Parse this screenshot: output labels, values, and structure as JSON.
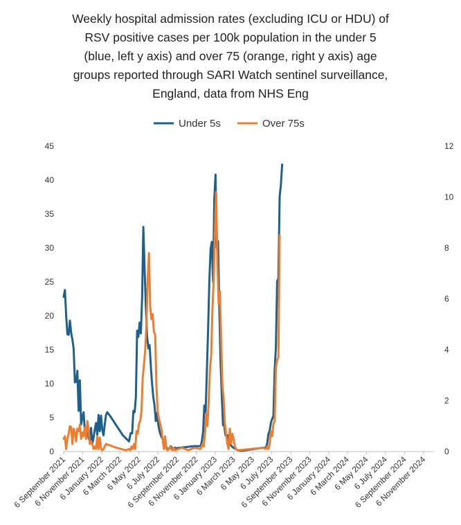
{
  "chart_data": {
    "type": "line",
    "title_lines": [
      "Weekly hospital admission rates (excluding ICU or HDU) of",
      "RSV positive cases per 100k population in the under 5",
      "(blue, left y axis) and over 75 (orange, right y axis) age",
      "groups reported through SARI Watch sentinel surveillance,",
      "England, data from NHS Eng"
    ],
    "legend_position": "top",
    "y_left": {
      "ylim": [
        0,
        45
      ],
      "ticks": [
        "0",
        "5",
        "10",
        "15",
        "20",
        "25",
        "30",
        "35",
        "40",
        "45"
      ]
    },
    "y_right": {
      "ylim": [
        0,
        12
      ],
      "ticks": [
        "0",
        "2",
        "4",
        "6",
        "8",
        "10",
        "12"
      ]
    },
    "x_range_days": [
      0,
      1190
    ],
    "x_ticks": [
      {
        "label": "6 September 2021",
        "day": 0
      },
      {
        "label": "6 November 2021",
        "day": 61
      },
      {
        "label": "6 January 2022",
        "day": 122
      },
      {
        "label": "6 March 2022",
        "day": 181
      },
      {
        "label": "6 May 2022",
        "day": 242
      },
      {
        "label": "6 July 2022",
        "day": 303
      },
      {
        "label": "6 September 2022",
        "day": 365
      },
      {
        "label": "6 November 2022",
        "day": 426
      },
      {
        "label": "6 January 2023",
        "day": 487
      },
      {
        "label": "6 March 2023",
        "day": 546
      },
      {
        "label": "6 May 2023",
        "day": 607
      },
      {
        "label": "6 July 2023",
        "day": 668
      },
      {
        "label": "6 September 2023",
        "day": 730
      },
      {
        "label": "6 November 2023",
        "day": 791
      },
      {
        "label": "6 January 2024",
        "day": 852
      },
      {
        "label": "6 March 2024",
        "day": 912
      },
      {
        "label": "6 May 2024",
        "day": 973
      },
      {
        "label": "6 July 2024",
        "day": 1034
      },
      {
        "label": "6 September 2024",
        "day": 1096
      },
      {
        "label": "6 November 2024",
        "day": 1157
      }
    ],
    "series": [
      {
        "name": "Under 5s",
        "color": "#1F5F8B",
        "axis": "left",
        "points": [
          [
            0,
            22.8
          ],
          [
            4,
            23.8
          ],
          [
            8,
            20
          ],
          [
            12,
            17.3
          ],
          [
            16,
            17.2
          ],
          [
            20,
            19.3
          ],
          [
            24,
            17.5
          ],
          [
            28,
            16.5
          ],
          [
            32,
            15.2
          ],
          [
            36,
            10.2
          ],
          [
            40,
            10.3
          ],
          [
            44,
            11.9
          ],
          [
            48,
            6
          ],
          [
            52,
            10.5
          ],
          [
            56,
            4
          ],
          [
            60,
            5
          ],
          [
            64,
            5.8
          ],
          [
            68,
            3
          ],
          [
            72,
            2.5
          ],
          [
            76,
            3.4
          ],
          [
            80,
            2
          ],
          [
            84,
            1.5
          ],
          [
            88,
            3.5
          ],
          [
            92,
            1.2
          ],
          [
            96,
            2
          ],
          [
            100,
            3.3
          ],
          [
            104,
            4.2
          ],
          [
            108,
            2.5
          ],
          [
            112,
            5.4
          ],
          [
            116,
            3
          ],
          [
            120,
            5.3
          ],
          [
            124,
            3.2
          ],
          [
            128,
            2.4
          ],
          [
            132,
            4
          ],
          [
            136,
            5.4
          ],
          [
            140,
            5.8
          ],
          [
            150,
            5.2
          ],
          [
            170,
            3.8
          ],
          [
            190,
            2.4
          ],
          [
            210,
            1.5
          ],
          [
            215,
            2.7
          ],
          [
            220,
            2.7
          ],
          [
            224,
            6
          ],
          [
            228,
            5.8
          ],
          [
            232,
            8
          ],
          [
            236,
            17.8
          ],
          [
            240,
            16.9
          ],
          [
            244,
            19
          ],
          [
            248,
            17.4
          ],
          [
            252,
            22.6
          ],
          [
            256,
            33.1
          ],
          [
            260,
            27
          ],
          [
            264,
            21.3
          ],
          [
            268,
            17
          ],
          [
            272,
            15.2
          ],
          [
            276,
            15.7
          ],
          [
            280,
            12.6
          ],
          [
            284,
            10
          ],
          [
            288,
            8
          ],
          [
            292,
            6.8
          ],
          [
            296,
            4.5
          ],
          [
            300,
            5.7
          ],
          [
            304,
            4
          ],
          [
            308,
            3
          ],
          [
            312,
            2.4
          ],
          [
            316,
            2
          ],
          [
            320,
            1.8
          ],
          [
            324,
            1.5
          ],
          [
            328,
            0.8
          ],
          [
            332,
            0.5
          ],
          [
            336,
            0.3
          ],
          [
            340,
            0.5
          ],
          [
            344,
            0.8
          ],
          [
            348,
            0.5
          ],
          [
            352,
            0.4
          ],
          [
            356,
            0.6
          ],
          [
            360,
            0.5
          ],
          [
            380,
            0.6
          ],
          [
            400,
            0.7
          ],
          [
            420,
            0.8
          ],
          [
            440,
            0.8
          ],
          [
            444,
            1.5
          ],
          [
            448,
            2.9
          ],
          [
            452,
            6.8
          ],
          [
            456,
            5.7
          ],
          [
            460,
            11.7
          ],
          [
            464,
            17.8
          ],
          [
            468,
            25
          ],
          [
            472,
            29.8
          ],
          [
            476,
            30.9
          ],
          [
            480,
            25
          ],
          [
            484,
            37.2
          ],
          [
            488,
            40.8
          ],
          [
            492,
            30
          ],
          [
            496,
            31
          ],
          [
            500,
            21.5
          ],
          [
            504,
            13.3
          ],
          [
            508,
            8.4
          ],
          [
            512,
            3.9
          ],
          [
            516,
            3.8
          ],
          [
            520,
            2.4
          ],
          [
            524,
            2.4
          ],
          [
            528,
            2.4
          ],
          [
            532,
            1.5
          ],
          [
            536,
            1
          ],
          [
            540,
            0.8
          ],
          [
            544,
            0.6
          ],
          [
            548,
            0.5
          ],
          [
            552,
            0.4
          ],
          [
            556,
            0.3
          ],
          [
            560,
            0.2
          ],
          [
            570,
            0.1
          ],
          [
            630,
            0.5
          ],
          [
            650,
            0.6
          ],
          [
            654,
            1.2
          ],
          [
            658,
            2.6
          ],
          [
            662,
            3.1
          ],
          [
            666,
            4.3
          ],
          [
            670,
            4.8
          ],
          [
            674,
            5.3
          ],
          [
            678,
            12
          ],
          [
            682,
            15.4
          ],
          [
            686,
            25.1
          ],
          [
            690,
            25.5
          ],
          [
            694,
            37.6
          ],
          [
            698,
            39.3
          ],
          [
            702,
            42.3
          ]
        ]
      },
      {
        "name": "Over 75s",
        "color": "#ED7D31",
        "axis": "right",
        "points": [
          [
            0,
            0.5
          ],
          [
            4,
            0.6
          ],
          [
            8,
            0.1
          ],
          [
            12,
            0.5
          ],
          [
            16,
            0.7
          ],
          [
            20,
            1
          ],
          [
            24,
            0.96
          ],
          [
            28,
            0.3
          ],
          [
            32,
            0.9
          ],
          [
            36,
            0.75
          ],
          [
            40,
            0.4
          ],
          [
            44,
            0.9
          ],
          [
            48,
            0.8
          ],
          [
            52,
            1.06
          ],
          [
            56,
            0.5
          ],
          [
            60,
            0.75
          ],
          [
            64,
            0.6
          ],
          [
            68,
            0.95
          ],
          [
            72,
            0.5
          ],
          [
            76,
            1.2
          ],
          [
            80,
            0.9
          ],
          [
            84,
            0.3
          ],
          [
            88,
            0.4
          ],
          [
            92,
            0.3
          ],
          [
            96,
            0.1
          ],
          [
            100,
            0.2
          ],
          [
            104,
            0.1
          ],
          [
            108,
            0.6
          ],
          [
            112,
            0.1
          ],
          [
            116,
            0.55
          ],
          [
            120,
            0.1
          ],
          [
            124,
            0.05
          ],
          [
            128,
            0.1
          ],
          [
            132,
            0.2
          ],
          [
            136,
            0.3
          ],
          [
            170,
            0.15
          ],
          [
            200,
            0.05
          ],
          [
            210,
            0.1
          ],
          [
            214,
            0.05
          ],
          [
            218,
            0.2
          ],
          [
            222,
            0.1
          ],
          [
            226,
            0.3
          ],
          [
            230,
            0.1
          ],
          [
            234,
            0.8
          ],
          [
            238,
            0.7
          ],
          [
            242,
            1.1
          ],
          [
            246,
            1.2
          ],
          [
            250,
            1.6
          ],
          [
            254,
            2.9
          ],
          [
            258,
            3.4
          ],
          [
            262,
            4
          ],
          [
            266,
            5
          ],
          [
            270,
            6.8
          ],
          [
            274,
            7.8
          ],
          [
            278,
            5.7
          ],
          [
            282,
            5.2
          ],
          [
            286,
            5.4
          ],
          [
            290,
            4.7
          ],
          [
            294,
            4.6
          ],
          [
            298,
            2.6
          ],
          [
            302,
            1.6
          ],
          [
            306,
            1.3
          ],
          [
            310,
            1.1
          ],
          [
            314,
            0.9
          ],
          [
            318,
            0.5
          ],
          [
            322,
            0.1
          ],
          [
            326,
            0.6
          ],
          [
            330,
            0.1
          ],
          [
            334,
            0.05
          ],
          [
            338,
            0.1
          ],
          [
            342,
            0.2
          ],
          [
            346,
            0.1
          ],
          [
            350,
            0.05
          ],
          [
            354,
            0.15
          ],
          [
            358,
            0.05
          ],
          [
            380,
            0.15
          ],
          [
            400,
            0.05
          ],
          [
            420,
            0.15
          ],
          [
            440,
            0.1
          ],
          [
            446,
            0.3
          ],
          [
            450,
            0.2
          ],
          [
            454,
            0.7
          ],
          [
            458,
            1.5
          ],
          [
            462,
            1
          ],
          [
            466,
            2
          ],
          [
            470,
            3.2
          ],
          [
            474,
            3.8
          ],
          [
            478,
            5.6
          ],
          [
            482,
            6.7
          ],
          [
            486,
            8.7
          ],
          [
            490,
            10.2
          ],
          [
            494,
            7.4
          ],
          [
            498,
            5.8
          ],
          [
            502,
            6.3
          ],
          [
            506,
            4.4
          ],
          [
            510,
            2.6
          ],
          [
            514,
            2.1
          ],
          [
            518,
            1.1
          ],
          [
            522,
            0.7
          ],
          [
            526,
            0.3
          ],
          [
            530,
            0.1
          ],
          [
            534,
            0.9
          ],
          [
            538,
            0.3
          ],
          [
            542,
            0.7
          ],
          [
            546,
            0.5
          ],
          [
            550,
            0.2
          ],
          [
            554,
            0.1
          ],
          [
            560,
            0.05
          ],
          [
            640,
            0.15
          ],
          [
            650,
            0.1
          ],
          [
            654,
            0.2
          ],
          [
            658,
            0.1
          ],
          [
            662,
            0.3
          ],
          [
            666,
            0.8
          ],
          [
            670,
            0.6
          ],
          [
            674,
            1.1
          ],
          [
            678,
            1.2
          ],
          [
            682,
            3.3
          ],
          [
            686,
            3.6
          ],
          [
            690,
            3.7
          ],
          [
            694,
            8.5
          ]
        ]
      }
    ]
  }
}
